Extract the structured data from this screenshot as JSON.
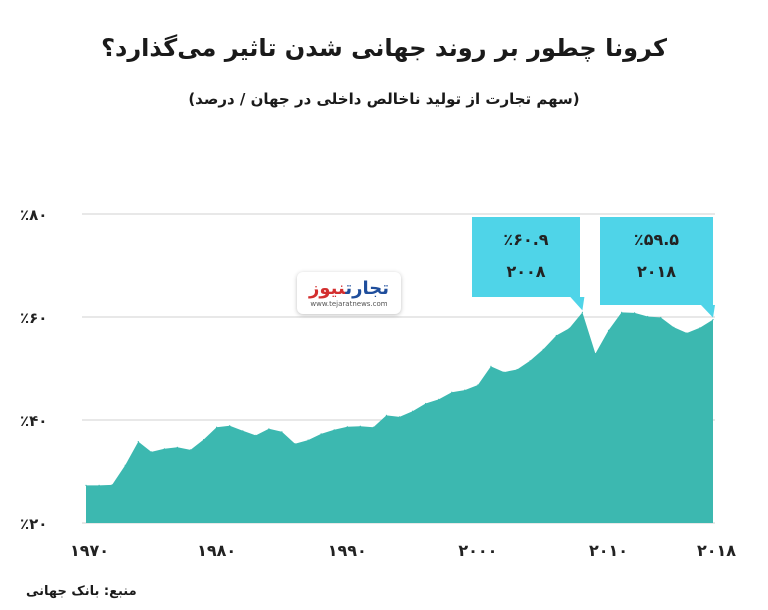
{
  "title": "کرونا چطور بر روند جهانی شدن تاثیر می‌گذارد؟",
  "subtitle": "(سهم تجارت از تولید ناخالص داخلی در جهان / درصد)",
  "source": "منبع: بانک جهانی",
  "logo": {
    "part1": "تجارت",
    "part2": "نیوز",
    "url": "www.tejaratnews.com"
  },
  "colors": {
    "area": "#3cb8b0",
    "callout": "#4fd4e8",
    "grid": "#d0d0d0"
  },
  "callouts": [
    {
      "value": "٪۶۰.۹",
      "year": "۲۰۰۸"
    },
    {
      "value": "٪۵۹.۵",
      "year": "۲۰۱۸"
    }
  ],
  "chart_data": {
    "type": "area",
    "title": "کرونا چطور بر روند جهانی شدن تاثیر می‌گذارد؟",
    "subtitle": "(سهم تجارت از تولید ناخالص داخلی در جهان / درصد)",
    "ylim": [
      20,
      80
    ],
    "xlim": [
      1970,
      2018
    ],
    "yticks": [
      {
        "value": 20,
        "label": "٪۲۰"
      },
      {
        "value": 40,
        "label": "٪۴۰"
      },
      {
        "value": 60,
        "label": "٪۶۰"
      },
      {
        "value": 80,
        "label": "٪۸۰"
      }
    ],
    "xticks": [
      {
        "value": 1970,
        "label": "۱۹۷۰"
      },
      {
        "value": 1980,
        "label": "۱۹۸۰"
      },
      {
        "value": 1990,
        "label": "۱۹۹۰"
      },
      {
        "value": 2000,
        "label": "۲۰۰۰"
      },
      {
        "value": 2010,
        "label": "۲۰۱۰"
      },
      {
        "value": 2018,
        "label": "۲۰۱۸"
      }
    ],
    "grid": true,
    "x": [
      1970,
      1971,
      1972,
      1973,
      1974,
      1975,
      1976,
      1977,
      1978,
      1979,
      1980,
      1981,
      1982,
      1983,
      1984,
      1985,
      1986,
      1987,
      1988,
      1989,
      1990,
      1991,
      1992,
      1993,
      1994,
      1995,
      1996,
      1997,
      1998,
      1999,
      2000,
      2001,
      2002,
      2003,
      2004,
      2005,
      2006,
      2007,
      2008,
      2009,
      2010,
      2011,
      2012,
      2013,
      2014,
      2015,
      2016,
      2017,
      2018
    ],
    "values": [
      27.3,
      27.3,
      27.4,
      31.2,
      35.8,
      33.8,
      34.4,
      34.7,
      34.2,
      36.2,
      38.6,
      38.9,
      37.9,
      37.0,
      38.3,
      37.7,
      35.4,
      36.1,
      37.3,
      38.1,
      38.7,
      38.8,
      38.6,
      40.9,
      40.6,
      41.7,
      43.2,
      44.0,
      45.4,
      45.8,
      46.8,
      50.4,
      49.3,
      49.8,
      51.5,
      53.7,
      56.4,
      57.8,
      60.9,
      52.9,
      57.4,
      60.9,
      60.8,
      60.1,
      59.9,
      58.0,
      56.9,
      57.9,
      59.5
    ]
  }
}
